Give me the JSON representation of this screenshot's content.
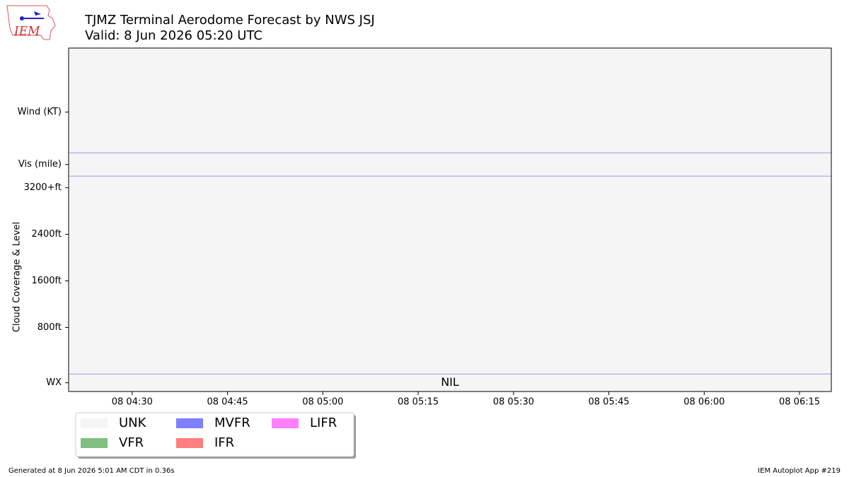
{
  "logo_text": "IEM",
  "chart_data": {
    "type": "taf",
    "title": "TJMZ Terminal Aerodome Forecast by NWS JSJ",
    "subtitle": "Valid: 8 Jun 2026 05:20 UTC",
    "ylabel": "Cloud Coverage & Level",
    "ylim": [
      -300,
      5600
    ],
    "yticks": [
      {
        "value": -150,
        "label": "WX"
      },
      {
        "value": 800,
        "label": "800ft"
      },
      {
        "value": 1600,
        "label": "1600ft"
      },
      {
        "value": 2400,
        "label": "2400ft"
      },
      {
        "value": 3200,
        "label": "3200+ft"
      },
      {
        "value": 3600,
        "label": "Vis (mile)"
      },
      {
        "value": 4500,
        "label": "Wind (KT)"
      }
    ],
    "separators": [
      0,
      3400,
      3800
    ],
    "separator_color": "#9999ee",
    "xlim": [
      260,
      380
    ],
    "xticks": [
      {
        "value": 270,
        "label": "08 04:30"
      },
      {
        "value": 285,
        "label": "08 04:45"
      },
      {
        "value": 300,
        "label": "08 05:00"
      },
      {
        "value": 315,
        "label": "08 05:15"
      },
      {
        "value": 330,
        "label": "08 05:30"
      },
      {
        "value": 345,
        "label": "08 05:45"
      },
      {
        "value": 360,
        "label": "08 06:00"
      },
      {
        "value": 375,
        "label": "08 06:15"
      }
    ],
    "annotations": [
      {
        "text": "NIL",
        "x": 320,
        "y": -150
      }
    ],
    "plot_background": "#f5f5f5",
    "legend": [
      {
        "name": "UNK",
        "color": "#f5f5f5"
      },
      {
        "name": "VFR",
        "color": "#7fbf7f"
      },
      {
        "name": "MVFR",
        "color": "#7f7fff"
      },
      {
        "name": "IFR",
        "color": "#ff7f7f"
      },
      {
        "name": "LIFR",
        "color": "#ff7fff"
      }
    ],
    "footer_left": "Generated at 8 Jun 2026 5:01 AM CDT in 0.36s",
    "footer_right": "IEM Autoplot App #219"
  }
}
